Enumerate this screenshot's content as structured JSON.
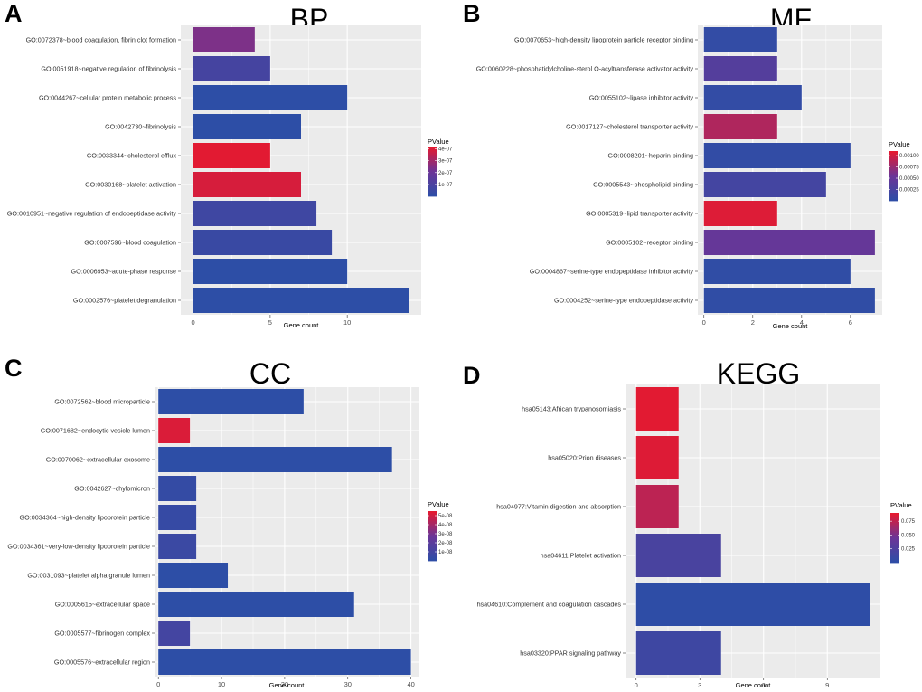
{
  "colors": {
    "low": "#2d4ea6",
    "mid": "#6b3597",
    "high": "#e8192d",
    "panel_bg": "#ebebeb",
    "grid": "#ffffff"
  },
  "chart_data": [
    {
      "letter": "A",
      "title": "BP",
      "type": "bar",
      "orientation": "horizontal",
      "xlabel": "Gene count",
      "xlim": [
        -0.8,
        14.8
      ],
      "xticks": [
        0,
        5,
        10
      ],
      "categories": [
        "GO:0072378~blood coagulation, fibrin clot formation",
        "GO:0051918~negative regulation of fibrinolysis",
        "GO:0044267~cellular protein metabolic process",
        "GO:0042730~fibrinolysis",
        "GO:0033344~cholesterol efflux",
        "GO:0030168~platelet activation",
        "GO:0010951~negative regulation of endopeptidase activity",
        "GO:0007596~blood coagulation",
        "GO:0006953~acute-phase response",
        "GO:0002576~platelet degranulation"
      ],
      "values": [
        4,
        5,
        10,
        7,
        5,
        7,
        8,
        9,
        10,
        14
      ],
      "pvalues": [
        2.4e-07,
        8e-08,
        1e-09,
        1e-09,
        4.1e-07,
        3.9e-07,
        6e-08,
        4e-08,
        1e-09,
        1e-09
      ],
      "legend": {
        "title": "PValue",
        "min": 0,
        "max": 4.2e-07,
        "ticks": [
          1e-07,
          2e-07,
          3e-07,
          4e-07
        ],
        "tick_labels": [
          "1e-07",
          "2e-07",
          "3e-07",
          "4e-07"
        ]
      }
    },
    {
      "letter": "B",
      "title": "MF",
      "type": "bar",
      "orientation": "horizontal",
      "xlabel": "Gene count",
      "xlim": [
        -0.25,
        7.3
      ],
      "xticks": [
        0,
        2,
        4,
        6
      ],
      "categories": [
        "GO:0070653~high-density lipoprotein particle receptor binding",
        "GO:0060228~phosphatidylcholine-sterol O-acyltransferase activator activity",
        "GO:0055102~lipase inhibitor activity",
        "GO:0017127~cholesterol transporter activity",
        "GO:0008201~heparin binding",
        "GO:0005543~phospholipid binding",
        "GO:0005319~lipid transporter activity",
        "GO:0005102~receptor binding",
        "GO:0004867~serine-type endopeptidase inhibitor activity",
        "GO:0004252~serine-type endopeptidase activity"
      ],
      "values": [
        3,
        3,
        4,
        3,
        6,
        5,
        3,
        7,
        6,
        7
      ],
      "pvalues": [
        5e-05,
        0.00035,
        5e-05,
        0.00085,
        4e-05,
        0.0002,
        0.00105,
        0.0005,
        3e-05,
        3e-05
      ],
      "legend": {
        "title": "PValue",
        "min": 0,
        "max": 0.0011,
        "ticks": [
          0.00025,
          0.0005,
          0.00075,
          0.001
        ],
        "tick_labels": [
          "0.00025",
          "0.00050",
          "0.00075",
          "0.00100"
        ]
      }
    },
    {
      "letter": "C",
      "title": "CC",
      "type": "bar",
      "orientation": "horizontal",
      "xlabel": "Gene count",
      "xlim": [
        -0.6,
        41.2
      ],
      "xticks": [
        0,
        10,
        20,
        30,
        40
      ],
      "categories": [
        "GO:0072562~blood microparticle",
        "GO:0071682~endocytic vesicle lumen",
        "GO:0070062~extracellular exosome",
        "GO:0042627~chylomicron",
        "GO:0034364~high-density lipoprotein particle",
        "GO:0034361~very-low-density lipoprotein particle",
        "GO:0031093~platelet alpha granule lumen",
        "GO:0005615~extracellular space",
        "GO:0005577~fibrinogen complex",
        "GO:0005576~extracellular region"
      ],
      "values": [
        23,
        5,
        37,
        6,
        6,
        6,
        11,
        31,
        5,
        40
      ],
      "pvalues": [
        1e-10,
        5.2e-08,
        1e-10,
        3e-09,
        4e-09,
        6e-09,
        2e-10,
        1e-10,
        1e-08,
        1e-10
      ],
      "legend": {
        "title": "PValue",
        "min": 0,
        "max": 5.5e-08,
        "ticks": [
          1e-08,
          2e-08,
          3e-08,
          4e-08,
          5e-08
        ],
        "tick_labels": [
          "1e-08",
          "2e-08",
          "3e-08",
          "4e-08",
          "5e-08"
        ]
      }
    },
    {
      "letter": "D",
      "title": "KEGG",
      "type": "bar",
      "orientation": "horizontal",
      "xlabel": "Gene count",
      "xlim": [
        -0.5,
        11.5
      ],
      "xticks": [
        0,
        3,
        6,
        9
      ],
      "categories": [
        "hsa05143:African trypanosomiasis",
        "hsa05020:Prion diseases",
        "hsa04977:Vitamin digestion and absorption",
        "hsa04611:Platelet activation",
        "hsa04610:Complement and coagulation cascades",
        "hsa03320:PPAR signaling pathway"
      ],
      "values": [
        2,
        2,
        2,
        4,
        11,
        4
      ],
      "pvalues": [
        0.088,
        0.086,
        0.074,
        0.02,
        0.001,
        0.012
      ],
      "legend": {
        "title": "PValue",
        "min": 0,
        "max": 0.09,
        "ticks": [
          0.025,
          0.05,
          0.075
        ],
        "tick_labels": [
          "0.025",
          "0.050",
          "0.075"
        ]
      }
    }
  ]
}
